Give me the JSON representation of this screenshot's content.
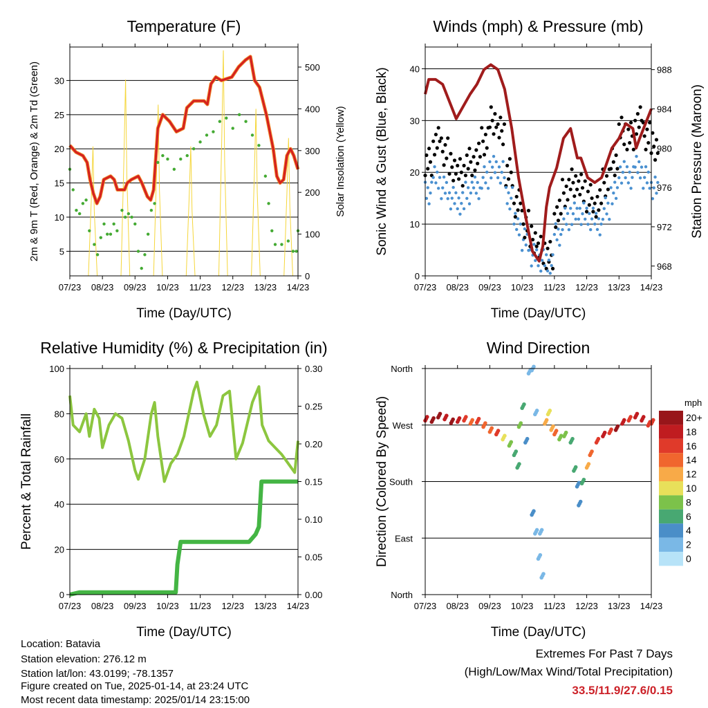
{
  "chart_data": [
    {
      "type": "line",
      "title": "Temperature (F)",
      "xlabel": "Time (Day/UTC)",
      "ylabel": "2m & 9m T (Red, Orange) & 2m Td (Green)",
      "ylabel_right": "Solar Insolation (Yellow)",
      "xticks": [
        "07/23",
        "08/23",
        "09/23",
        "10/23",
        "11/23",
        "12/23",
        "13/23",
        "14/23"
      ],
      "xlim": [
        0,
        7
      ],
      "ylim": [
        1.4,
        34.9
      ],
      "yticks": [
        5,
        10,
        15,
        20,
        25,
        30
      ],
      "ylim_right": [
        0,
        548
      ],
      "yticks_right": [
        0,
        100,
        200,
        300,
        400,
        500
      ],
      "series": [
        {
          "name": "2m/9m T",
          "color": "#d42020",
          "x": [
            0,
            0.19,
            0.4,
            0.53,
            0.62,
            0.72,
            0.83,
            0.93,
            1.04,
            1.25,
            1.36,
            1.46,
            1.68,
            1.76,
            1.89,
            2.1,
            2.21,
            2.38,
            2.48,
            2.57,
            2.7,
            2.85,
            3.06,
            3.27,
            3.48,
            3.59,
            3.8,
            4.12,
            4.22,
            4.33,
            4.48,
            4.65,
            4.97,
            5.18,
            5.39,
            5.54,
            5.67,
            5.82,
            6.03,
            6.24,
            6.35,
            6.45,
            6.56,
            6.66,
            6.77,
            6.87,
            7
          ],
          "y": [
            20.5,
            19.5,
            19,
            18,
            15.5,
            13.5,
            12,
            13,
            15.5,
            16,
            15.5,
            14,
            14,
            15,
            15.5,
            16,
            15,
            13,
            12.5,
            14,
            23,
            25,
            24,
            22.5,
            23,
            26,
            27,
            27,
            26.5,
            29.5,
            30.5,
            30,
            30.5,
            32,
            33,
            33.5,
            30,
            29,
            25,
            20,
            16,
            15,
            15.5,
            19,
            20,
            19,
            17
          ]
        },
        {
          "name": "2m Td",
          "color": "#44aa33",
          "x": [
            0,
            0.1,
            0.2,
            0.3,
            0.4,
            0.5,
            0.6,
            0.75,
            0.85,
            0.95,
            1.05,
            1.15,
            1.25,
            1.35,
            1.45,
            1.6,
            1.7,
            1.8,
            1.9,
            2.0,
            2.1,
            2.2,
            2.3,
            2.4,
            2.5,
            2.6,
            2.7,
            2.85,
            3.0,
            3.2,
            3.4,
            3.6,
            3.8,
            4.0,
            4.2,
            4.4,
            4.6,
            4.8,
            5.0,
            5.2,
            5.4,
            5.6,
            5.8,
            6.0,
            6.1,
            6.2,
            6.3,
            6.5,
            6.7,
            6.85,
            6.95,
            7.0
          ],
          "y": [
            17,
            14,
            11,
            10.5,
            12,
            12.5,
            8,
            6,
            4.5,
            7,
            9,
            7.5,
            7.5,
            9,
            8,
            11,
            10,
            10.5,
            10,
            9,
            5,
            2.5,
            4.5,
            7.5,
            11,
            12,
            18,
            19,
            18.5,
            17,
            18.5,
            19,
            20,
            21,
            22,
            22.5,
            24,
            24.5,
            23,
            25,
            24,
            22,
            20.5,
            16,
            12,
            8,
            6,
            6,
            6.5,
            5,
            5,
            8
          ]
        },
        {
          "name": "Solar Insolation",
          "color": "#f5d63a",
          "axis": "right",
          "peaks_x": [
            0.71,
            1.71,
            2.71,
            3.71,
            4.71,
            5.71,
            6.71
          ],
          "peaks_y": [
            310,
            470,
            410,
            310,
            540,
            400,
            330
          ]
        }
      ]
    },
    {
      "type": "scatter",
      "title": "Winds (mph) & Pressure (mb)",
      "xlabel": "Time (Day/UTC)",
      "ylabel": "Sonic Wind & Gust (Blue, Black)",
      "ylabel_right": "Station Pressure (Maroon)",
      "xticks": [
        "07/23",
        "08/23",
        "09/23",
        "10/23",
        "11/23",
        "12/23",
        "13/23",
        "14/23"
      ],
      "xlim": [
        0,
        7
      ],
      "ylim": [
        0,
        44.2
      ],
      "yticks": [
        0,
        10,
        20,
        30,
        40
      ],
      "ylim_right": [
        967,
        990.3
      ],
      "yticks_right": [
        968,
        972,
        976,
        980,
        984,
        988
      ],
      "series": [
        {
          "name": "Gust",
          "color": "#000000",
          "x": [
            0,
            0.25,
            0.5,
            0.75,
            1,
            1.25,
            1.5,
            1.75,
            2,
            2.25,
            2.5,
            2.75,
            3,
            3.25,
            3.5,
            3.75,
            4,
            4.25,
            4.5,
            4.75,
            5,
            5.25,
            5.5,
            5.75,
            6,
            6.25,
            6.5,
            6.75,
            7
          ],
          "y": [
            22,
            26,
            24,
            21,
            20,
            22,
            23,
            26,
            30,
            28,
            20,
            14,
            10,
            7,
            5,
            4,
            12,
            16,
            18,
            17,
            15,
            14,
            18,
            22,
            28,
            27,
            30,
            27,
            25
          ]
        },
        {
          "name": "Sonic Wind",
          "color": "#4a90d0",
          "x": [
            0,
            0.25,
            0.5,
            0.75,
            1,
            1.25,
            1.5,
            1.75,
            2,
            2.25,
            2.5,
            2.75,
            3,
            3.25,
            3.5,
            3.75,
            4,
            4.25,
            4.5,
            4.75,
            5,
            5.25,
            5.5,
            5.75,
            6,
            6.25,
            6.5,
            6.75,
            7
          ],
          "y": [
            16,
            19,
            17,
            15,
            14,
            16,
            17,
            19,
            21,
            20,
            15,
            10,
            7,
            4,
            3,
            2,
            8,
            11,
            12,
            12,
            11,
            10,
            13,
            16,
            20,
            19,
            21,
            19,
            17
          ]
        },
        {
          "name": "Station Pressure",
          "color": "#a01c1c",
          "axis": "right",
          "x": [
            0,
            0.11,
            0.32,
            0.54,
            0.96,
            1.39,
            1.6,
            1.82,
            2.03,
            2.25,
            2.46,
            2.68,
            2.89,
            3.11,
            3.32,
            3.53,
            3.64,
            3.75,
            3.85,
            4.07,
            4.28,
            4.5,
            4.71,
            4.82,
            5.03,
            5.25,
            5.46,
            5.57,
            5.78,
            6.0,
            6.21,
            6.43,
            6.53,
            6.64,
            7
          ],
          "y": [
            985.5,
            987,
            987,
            986.5,
            983,
            985.5,
            986.5,
            988,
            988.5,
            988,
            986,
            982,
            977,
            973,
            969.5,
            968.5,
            970,
            974,
            976,
            978,
            981,
            982,
            979,
            979,
            977,
            976.5,
            977,
            978,
            980,
            981,
            982.5,
            982,
            980,
            981,
            984
          ]
        }
      ]
    },
    {
      "type": "line",
      "title": "Relative Humidity (%) & Precipitation (in)",
      "xlabel": "Time (Day/UTC)",
      "ylabel": "Percent & Total Rainfall",
      "xticks": [
        "07/23",
        "08/23",
        "09/23",
        "10/23",
        "11/23",
        "12/23",
        "13/23",
        "14/23"
      ],
      "xlim": [
        0,
        7
      ],
      "ylim": [
        0,
        100
      ],
      "yticks": [
        0,
        20,
        40,
        60,
        80,
        100
      ],
      "ylim_right": [
        0,
        0.3
      ],
      "yticks_right": [
        "0.00",
        "0.05",
        "0.10",
        "0.15",
        "0.20",
        "0.25",
        "0.30"
      ],
      "series": [
        {
          "name": "Relative Humidity",
          "color": "#8cc63f",
          "x": [
            0,
            0.1,
            0.3,
            0.5,
            0.6,
            0.75,
            0.9,
            1.0,
            1.2,
            1.4,
            1.6,
            1.8,
            2.0,
            2.1,
            2.3,
            2.5,
            2.6,
            2.7,
            2.9,
            3.1,
            3.3,
            3.5,
            3.8,
            3.9,
            4.1,
            4.3,
            4.5,
            4.7,
            4.9,
            5.1,
            5.3,
            5.6,
            5.8,
            5.9,
            6.1,
            6.3,
            6.5,
            6.7,
            6.9,
            7.0
          ],
          "y": [
            88,
            75,
            72,
            80,
            70,
            82,
            78,
            65,
            75,
            80,
            78,
            68,
            55,
            51,
            60,
            80,
            85,
            70,
            50,
            58,
            62,
            70,
            90,
            94,
            80,
            70,
            75,
            88,
            90,
            60,
            67,
            85,
            92,
            75,
            68,
            65,
            62,
            58,
            54,
            68
          ]
        },
        {
          "name": "Total Precipitation",
          "color": "#44b544",
          "axis": "right",
          "x": [
            0,
            0.3,
            3.25,
            3.3,
            3.4,
            5.5,
            5.7,
            5.8,
            5.88,
            7
          ],
          "y": [
            0,
            0.003,
            0.003,
            0.04,
            0.07,
            0.07,
            0.08,
            0.09,
            0.15,
            0.15
          ]
        }
      ]
    },
    {
      "type": "scatter",
      "title": "Wind Direction",
      "xlabel": "Time (Day/UTC)",
      "ylabel": "Direction (Colored By Speed)",
      "xticks": [
        "07/23",
        "08/23",
        "09/23",
        "10/23",
        "11/23",
        "12/23",
        "13/23",
        "14/23"
      ],
      "xlim": [
        0,
        7
      ],
      "ylim": [
        0,
        360
      ],
      "yticks": [
        "North",
        "East",
        "South",
        "West",
        "North"
      ],
      "legend": {
        "title": "mph",
        "labels": [
          "0",
          "2",
          "4",
          "6",
          "8",
          "10",
          "12",
          "14",
          "16",
          "18",
          "20+"
        ],
        "colors": [
          "#b7e3f8",
          "#7ab8e6",
          "#4a8ec8",
          "#48a872",
          "#7cc24a",
          "#e8e05a",
          "#f8aa48",
          "#f0662e",
          "#e03a2a",
          "#c01c20",
          "#98161a"
        ],
        "placement": "right"
      },
      "points": [
        [
          0,
          280,
          18
        ],
        [
          0.2,
          278,
          20
        ],
        [
          0.4,
          285,
          20
        ],
        [
          0.6,
          282,
          18
        ],
        [
          0.8,
          276,
          20
        ],
        [
          1.0,
          278,
          17
        ],
        [
          1.2,
          280,
          16
        ],
        [
          1.4,
          275,
          14
        ],
        [
          1.6,
          277,
          15
        ],
        [
          1.8,
          270,
          14
        ],
        [
          2.0,
          262,
          13
        ],
        [
          2.2,
          258,
          16
        ],
        [
          2.4,
          250,
          10
        ],
        [
          2.6,
          240,
          8
        ],
        [
          2.75,
          225,
          6
        ],
        [
          2.85,
          205,
          5
        ],
        [
          2.9,
          270,
          8
        ],
        [
          3.0,
          300,
          6
        ],
        [
          3.1,
          245,
          3
        ],
        [
          3.2,
          355,
          2
        ],
        [
          3.3,
          360,
          1
        ],
        [
          3.4,
          290,
          1
        ],
        [
          3.3,
          130,
          4
        ],
        [
          3.4,
          100,
          2
        ],
        [
          3.5,
          60,
          2
        ],
        [
          3.6,
          30,
          1
        ],
        [
          3.55,
          100,
          2
        ],
        [
          3.7,
          275,
          12
        ],
        [
          3.8,
          290,
          10
        ],
        [
          3.9,
          265,
          11
        ],
        [
          4.0,
          258,
          13
        ],
        [
          4.15,
          250,
          8
        ],
        [
          4.3,
          255,
          7
        ],
        [
          4.5,
          245,
          6
        ],
        [
          4.6,
          200,
          5
        ],
        [
          4.7,
          175,
          4
        ],
        [
          4.75,
          145,
          3
        ],
        [
          4.85,
          180,
          5
        ],
        [
          5.0,
          205,
          11
        ],
        [
          5.1,
          225,
          13
        ],
        [
          5.3,
          245,
          16
        ],
        [
          5.5,
          255,
          18
        ],
        [
          5.7,
          260,
          16
        ],
        [
          5.9,
          265,
          19
        ],
        [
          6.1,
          275,
          17
        ],
        [
          6.3,
          280,
          16
        ],
        [
          6.5,
          285,
          18
        ],
        [
          6.7,
          280,
          17
        ],
        [
          6.9,
          272,
          16
        ],
        [
          7.0,
          275,
          15
        ]
      ]
    }
  ],
  "info": {
    "location": "Location: Batavia",
    "elevation": "Station elevation: 276.12 m",
    "latlon": "Station lat/lon: 43.0199; -78.1357",
    "created": "Figure created on Tue, 2025-01-14, at 23:24 UTC",
    "recent": "Most recent data timestamp: 2025/01/14 23:15:00"
  },
  "extremes": {
    "title": "Extremes For Past 7 Days",
    "subtitle": "(High/Low/Max Wind/Total Precipitation)",
    "values": "33.5/11.9/27.6/0.15",
    "color": "#cc2229"
  }
}
